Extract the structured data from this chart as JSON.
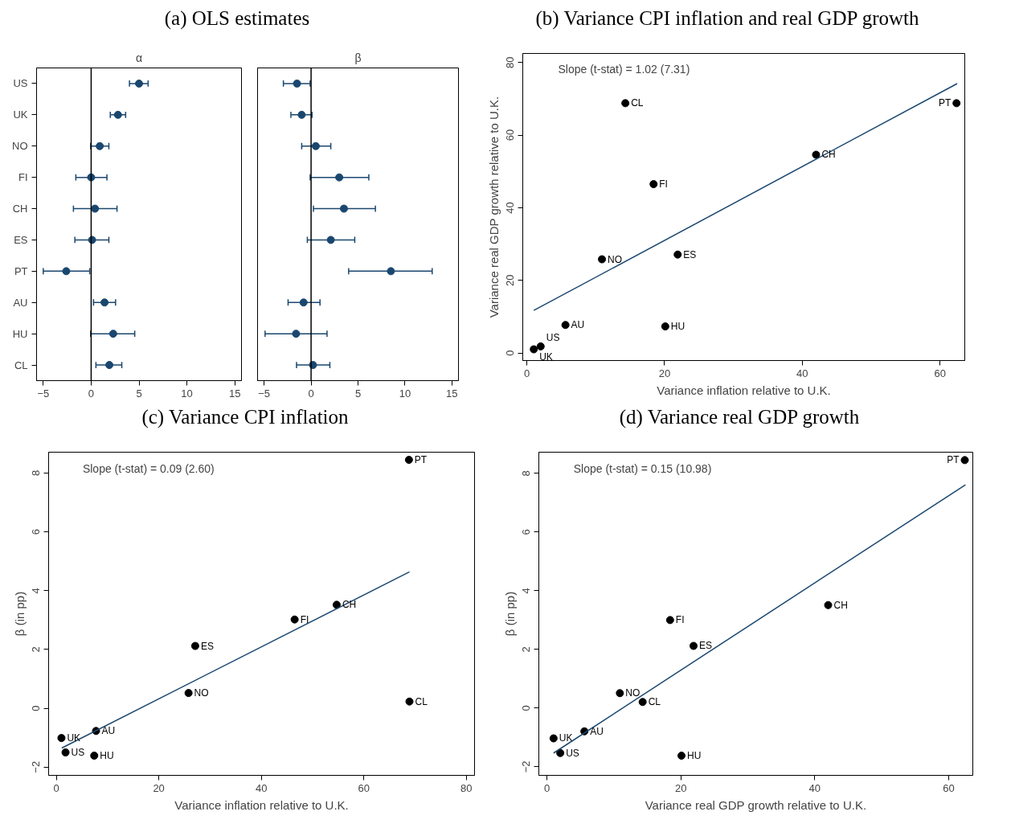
{
  "chart_data": [
    {
      "type": "scatter",
      "orientation": "horizontal",
      "title": "(a) OLS estimates",
      "subtitle": "α",
      "categories": [
        "US",
        "UK",
        "NO",
        "FI",
        "CH",
        "ES",
        "PT",
        "AU",
        "HU",
        "CL"
      ],
      "values": [
        5.0,
        2.8,
        0.9,
        0.0,
        0.4,
        0.1,
        -2.6,
        1.4,
        2.3,
        1.9
      ],
      "errors": [
        [
          4.0,
          5.95
        ],
        [
          2.0,
          3.6
        ],
        [
          -0.05,
          1.85
        ],
        [
          -1.6,
          1.65
        ],
        [
          -1.85,
          2.7
        ],
        [
          -1.7,
          1.85
        ],
        [
          -5.0,
          -0.15
        ],
        [
          0.25,
          2.55
        ],
        [
          -0.05,
          4.55
        ],
        [
          0.5,
          3.2
        ]
      ],
      "color": "#1a476f",
      "marker": "circle",
      "xlim": [
        -5.7,
        15.7
      ],
      "xticks": [
        -5,
        0,
        5,
        10,
        15
      ],
      "ref_lines": [
        {
          "axis": "x",
          "value": 0,
          "color": "#000000"
        }
      ]
    },
    {
      "type": "scatter",
      "orientation": "horizontal",
      "subtitle": "β",
      "values": [
        -1.5,
        -1.0,
        0.5,
        3.0,
        3.5,
        2.1,
        8.5,
        -0.8,
        -1.6,
        0.2
      ],
      "errors": [
        [
          -2.95,
          -0.1
        ],
        [
          -2.15,
          0.1
        ],
        [
          -1.0,
          2.1
        ],
        [
          -0.1,
          6.15
        ],
        [
          0.25,
          6.85
        ],
        [
          -0.4,
          4.65
        ],
        [
          4.0,
          12.9
        ],
        [
          -2.45,
          0.95
        ],
        [
          -4.9,
          1.7
        ],
        [
          -1.55,
          2.0
        ]
      ],
      "color": "#1a476f",
      "marker": "circle",
      "xlim": [
        -5.7,
        15.7
      ],
      "xticks": [
        -5,
        0,
        5,
        10,
        15
      ],
      "tick_labels": "x",
      "ref_lines": [
        {
          "axis": "x",
          "value": 0,
          "color": "#000000"
        }
      ]
    },
    {
      "type": "scatter",
      "title": "(b) Variance CPI inflation and real GDP growth",
      "xlabel": "Variance inflation relative to U.K.",
      "ylabel": "Variance real GDP growth relative to U.K.",
      "xlim": [
        -0.6,
        63.6
      ],
      "xticks": [
        0,
        20,
        40,
        60
      ],
      "ylim": [
        -2.1,
        82.5
      ],
      "yticks": [
        0,
        20,
        40,
        60,
        80
      ],
      "marker": "circle",
      "series": [
        {
          "type": "scatter",
          "color": "#000000",
          "x": [
            1.0,
            2.0,
            10.9,
            18.4,
            42.0,
            21.9,
            62.4,
            5.6,
            20.1,
            14.3
          ],
          "values": [
            1.0,
            1.8,
            25.8,
            46.5,
            54.6,
            27.1,
            68.8,
            7.7,
            7.3,
            68.8
          ]
        },
        {
          "type": "line",
          "marker": "none",
          "color": "#1a476f",
          "x": [
            1.0,
            62.5
          ],
          "values": [
            11.7,
            74.2
          ]
        }
      ],
      "annotations": [
        "Slope (t-stat) = 1.02 (7.31)",
        {
          "text": "UK",
          "x": 1.0,
          "y": 1.0
        },
        {
          "text": "US",
          "x": 2.0,
          "y": 1.8
        },
        {
          "text": "NO",
          "x": 10.9,
          "y": 25.8
        },
        {
          "text": "FI",
          "x": 18.4,
          "y": 46.5
        },
        {
          "text": "CH",
          "x": 42.0,
          "y": 54.6
        },
        {
          "text": "ES",
          "x": 21.9,
          "y": 27.1
        },
        {
          "text": "PT",
          "x": 62.4,
          "y": 68.8
        },
        {
          "text": "AU",
          "x": 5.6,
          "y": 7.7
        },
        {
          "text": "HU",
          "x": 20.1,
          "y": 7.3
        },
        {
          "text": "CL",
          "x": 14.3,
          "y": 68.8
        }
      ]
    },
    {
      "type": "scatter",
      "title": "(c) Variance CPI inflation",
      "xlabel": "Variance inflation relative to U.K.",
      "ylabel": "β (in pp)",
      "xlim": [
        -1.5,
        81.6
      ],
      "xticks": [
        0,
        20,
        40,
        60,
        80
      ],
      "ylim": [
        -2.28,
        8.71
      ],
      "yticks": [
        -2,
        0,
        2,
        4,
        6,
        8
      ],
      "marker": "circle",
      "series": [
        {
          "type": "scatter",
          "color": "#000000",
          "x": [
            1.0,
            1.8,
            25.8,
            46.5,
            54.7,
            27.1,
            68.8,
            7.75,
            7.4,
            68.9
          ],
          "values": [
            -1.01,
            -1.5,
            0.52,
            3.02,
            3.52,
            2.12,
            8.45,
            -0.77,
            -1.61,
            0.23
          ]
        },
        {
          "type": "line",
          "marker": "none",
          "color": "#1a476f",
          "x": [
            1.07,
            68.9
          ],
          "values": [
            -1.35,
            4.64
          ]
        }
      ],
      "annotations": [
        "Slope (t-stat) = 0.09 (2.60)",
        {
          "text": "UK",
          "x": 1.0,
          "y": -1.01
        },
        {
          "text": "US",
          "x": 1.8,
          "y": -1.5
        },
        {
          "text": "NO",
          "x": 25.8,
          "y": 0.52
        },
        {
          "text": "FI",
          "x": 46.5,
          "y": 3.02
        },
        {
          "text": "CH",
          "x": 54.7,
          "y": 3.52
        },
        {
          "text": "ES",
          "x": 27.1,
          "y": 2.12
        },
        {
          "text": "PT",
          "x": 68.8,
          "y": 8.45
        },
        {
          "text": "AU",
          "x": 7.75,
          "y": -0.77
        },
        {
          "text": "HU",
          "x": 7.4,
          "y": -1.61
        },
        {
          "text": "CL",
          "x": 68.9,
          "y": 0.23
        }
      ]
    },
    {
      "type": "scatter",
      "title": "(d) Variance real GDP growth",
      "xlabel": "Variance real GDP growth relative to U.K.",
      "ylabel": "β (in pp)",
      "xlim": [
        -1.2,
        63.6
      ],
      "xticks": [
        0,
        20,
        40,
        60
      ],
      "ylim": [
        -2.29,
        8.72
      ],
      "yticks": [
        -2,
        0,
        2,
        4,
        6,
        8
      ],
      "marker": "circle",
      "series": [
        {
          "type": "scatter",
          "color": "#000000",
          "x": [
            1.0,
            2.0,
            10.9,
            18.4,
            42.0,
            21.9,
            62.4,
            5.6,
            20.1,
            14.3
          ],
          "values": [
            -1.03,
            -1.53,
            0.51,
            3.0,
            3.51,
            2.12,
            8.45,
            -0.79,
            -1.62,
            0.21
          ]
        },
        {
          "type": "line",
          "marker": "none",
          "color": "#1a476f",
          "x": [
            1.0,
            62.5
          ],
          "values": [
            -1.53,
            7.61
          ]
        }
      ],
      "annotations": [
        "Slope (t-stat) = 0.15 (10.98)",
        {
          "text": "UK",
          "x": 1.0,
          "y": -1.03
        },
        {
          "text": "US",
          "x": 2.0,
          "y": -1.53
        },
        {
          "text": "NO",
          "x": 10.9,
          "y": 0.51
        },
        {
          "text": "FI",
          "x": 18.4,
          "y": 3.0
        },
        {
          "text": "CH",
          "x": 42.0,
          "y": 3.51
        },
        {
          "text": "ES",
          "x": 21.9,
          "y": 2.12
        },
        {
          "text": "PT",
          "x": 62.4,
          "y": 8.45
        },
        {
          "text": "AU",
          "x": 5.6,
          "y": -0.79
        },
        {
          "text": "HU",
          "x": 20.1,
          "y": -1.62
        },
        {
          "text": "CL",
          "x": 14.3,
          "y": 0.21
        }
      ]
    }
  ]
}
